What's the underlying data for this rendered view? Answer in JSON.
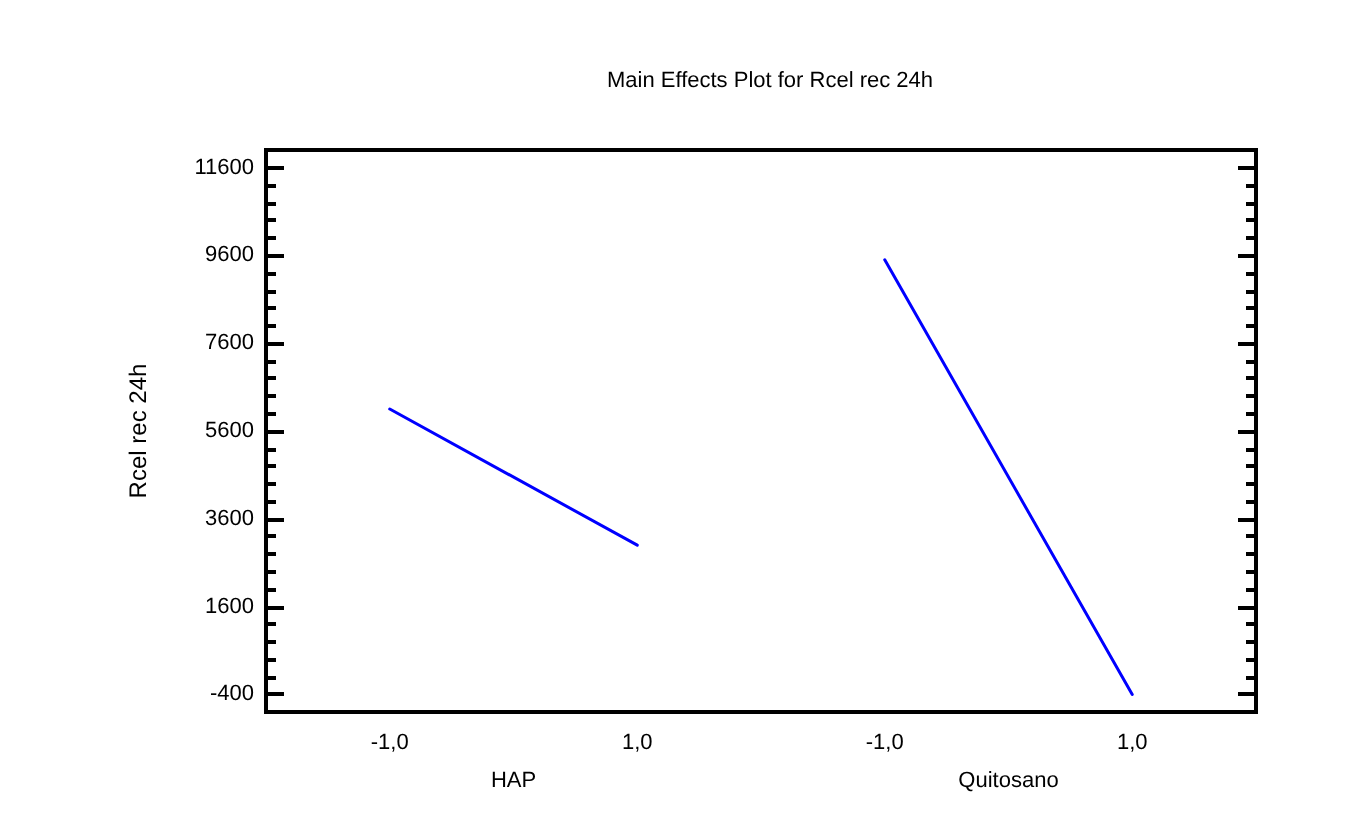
{
  "chart_data": {
    "type": "line",
    "title": "Main Effects Plot for Rcel rec 24h",
    "ylabel": "Rcel rec 24h",
    "categories": [
      "-1,0",
      "1,0",
      "-1,0",
      "1,0"
    ],
    "series": [
      {
        "color": "#0000ff",
        "values": [
          6100,
          3000,
          null,
          null
        ]
      },
      {
        "color": "#0000ff",
        "values": [
          null,
          null,
          9500,
          -400
        ]
      }
    ],
    "annotations": [
      "HAP",
      "Quitosano"
    ],
    "ylim": [
      -800,
      12000
    ],
    "yticks": [
      -400,
      {
        "value": 0,
        "label": null
      },
      {
        "value": 400,
        "label": null
      },
      {
        "value": 800,
        "label": null
      },
      {
        "value": 1200,
        "label": null
      },
      1600,
      {
        "value": 2000,
        "label": null
      },
      {
        "value": 2400,
        "label": null
      },
      {
        "value": 2800,
        "label": null
      },
      {
        "value": 3200,
        "label": null
      },
      3600,
      {
        "value": 4000,
        "label": null
      },
      {
        "value": 4400,
        "label": null
      },
      {
        "value": 4800,
        "label": null
      },
      {
        "value": 5200,
        "label": null
      },
      5600,
      {
        "value": 6000,
        "label": null
      },
      {
        "value": 6400,
        "label": null
      },
      {
        "value": 6800,
        "label": null
      },
      {
        "value": 7200,
        "label": null
      },
      7600,
      {
        "value": 8000,
        "label": null
      },
      {
        "value": 8400,
        "label": null
      },
      {
        "value": 8800,
        "label": null
      },
      {
        "value": 9200,
        "label": null
      },
      9600,
      {
        "value": 10000,
        "label": null
      },
      {
        "value": 10400,
        "label": null
      },
      {
        "value": 10800,
        "label": null
      },
      {
        "value": 11200,
        "label": null
      },
      11600
    ],
    "grid": false,
    "marker": "none",
    "line_style": "solid"
  }
}
